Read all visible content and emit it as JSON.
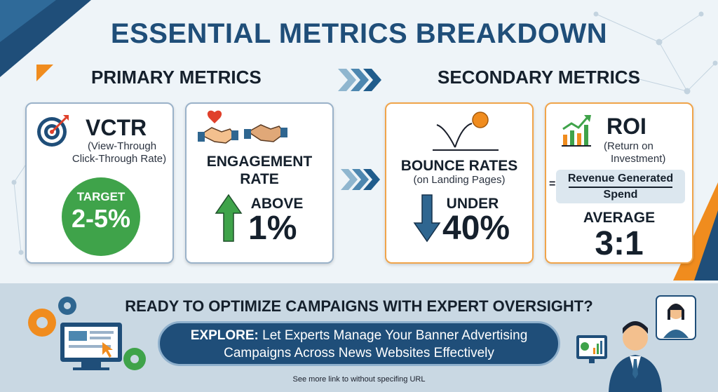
{
  "title": "ESSENTIAL METRICS BREAKDOWN",
  "primary_title": "PRIMARY METRICS",
  "secondary_title": "SECONDARY METRICS",
  "colors": {
    "title": "#1f4e79",
    "green": "#3fa34a",
    "orange_border": "#f0a44a",
    "blue_border": "#9ab2c9",
    "arrow_blue": "#2f6690"
  },
  "cards": {
    "vctr": {
      "heading": "VCTR",
      "subtitle_line1": "(View-Through",
      "subtitle_line2": "Click-Through Rate)",
      "target_label": "TARGET",
      "target_value": "2-5%",
      "icon": "target-icon"
    },
    "engagement": {
      "heading_line1": "ENGAGEMENT",
      "heading_line2": "RATE",
      "qualifier": "ABOVE",
      "value": "1%",
      "icon": "handshake-icon"
    },
    "bounce": {
      "heading": "BOUNCE RATES",
      "subtitle": "(on Landing Pages)",
      "qualifier": "UNDER",
      "value": "40%",
      "icon": "bouncing-ball-icon"
    },
    "roi": {
      "heading": "ROI",
      "subtitle_line1": "(Return on",
      "subtitle_line2": "Investment)",
      "formula_equals": "=",
      "formula_numerator": "Revenue Generated",
      "formula_denominator": "Spend",
      "average_label": "AVERAGE",
      "average_value": "3:1",
      "icon": "growth-chart-icon"
    }
  },
  "cta": {
    "question": "READY TO OPTIMIZE CAMPAIGNS WITH EXPERT OVERSIGHT?",
    "explore_label": "EXPLORE:",
    "explore_line1": " Let Experts Manage Your Banner Advertising",
    "explore_line2": "Campaigns Across News Websites Effectively",
    "footnote": "See more link to without specifing URL"
  }
}
